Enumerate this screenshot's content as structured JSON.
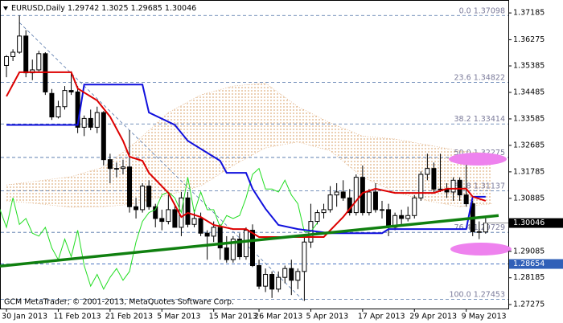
{
  "chart_data": {
    "type": "candlestick",
    "symbol": "EURUSD,Daily",
    "footer": "GCM MetaTrader; © 2001-2013, MetaQuotes Software Corp.",
    "ylim": [
      1.2714,
      1.3757
    ],
    "yticks": [
      1.37185,
      1.36275,
      1.35385,
      1.34485,
      1.33585,
      1.32685,
      1.31785,
      1.30885,
      1.29085,
      1.28185,
      1.27275
    ],
    "xlim": [
      -1,
      77.5
    ],
    "xticks": [
      {
        "value": 0,
        "label": "30 Jan 2013"
      },
      {
        "value": 8,
        "label": "11 Feb 2013"
      },
      {
        "value": 16,
        "label": "21 Feb 2013"
      },
      {
        "value": 24,
        "label": "5 Mar 2013"
      },
      {
        "value": 32,
        "label": "15 Mar 2013"
      },
      {
        "value": 39,
        "label": "26 Mar 2013"
      },
      {
        "value": 47,
        "label": "5 Apr 2013"
      },
      {
        "value": 55,
        "label": "17 Apr 2013"
      },
      {
        "value": 63,
        "label": "29 Apr 2013"
      },
      {
        "value": 71,
        "label": "9 May 2013"
      }
    ],
    "up_color": "#ffffff",
    "down_color": "#000000",
    "open": [
      1.354,
      1.357,
      1.3585,
      1.364,
      1.3515,
      1.3525,
      1.358,
      1.3445,
      1.3365,
      1.34,
      1.3455,
      1.345,
      1.333,
      1.336,
      1.333,
      1.338,
      1.322,
      1.319,
      1.319,
      1.3195,
      1.306,
      1.305,
      1.313,
      1.306,
      1.302,
      1.301,
      1.305,
      1.299,
      1.309,
      1.3,
      1.302,
      1.297,
      1.296,
      1.299,
      1.292,
      1.288,
      1.295,
      1.289,
      1.298,
      1.286,
      1.279,
      1.283,
      1.278,
      1.282,
      1.285,
      1.281,
      1.284,
      1.294,
      1.301,
      1.304,
      1.305,
      1.31,
      1.311,
      1.309,
      1.304,
      1.316,
      1.304,
      1.311,
      1.305,
      1.305,
      1.299,
      1.303,
      1.302,
      1.303,
      1.309,
      1.317,
      1.319,
      1.312,
      1.312,
      1.311,
      1.315,
      1.31,
      1.307,
      1.2975,
      1.29742
    ],
    "high": [
      1.3575,
      1.3595,
      1.371,
      1.366,
      1.356,
      1.359,
      1.3585,
      1.346,
      1.342,
      1.347,
      1.352,
      1.347,
      1.337,
      1.339,
      1.34,
      1.3385,
      1.324,
      1.321,
      1.322,
      1.332,
      1.309,
      1.314,
      1.315,
      1.307,
      1.305,
      1.31,
      1.307,
      1.311,
      1.311,
      1.305,
      1.304,
      1.298,
      1.301,
      1.3,
      1.296,
      1.296,
      1.297,
      1.299,
      1.3,
      1.288,
      1.285,
      1.284,
      1.284,
      1.286,
      1.288,
      1.285,
      1.296,
      1.307,
      1.305,
      1.307,
      1.313,
      1.314,
      1.315,
      1.312,
      1.317,
      1.32,
      1.312,
      1.314,
      1.308,
      1.307,
      1.304,
      1.305,
      1.306,
      1.31,
      1.318,
      1.324,
      1.321,
      1.324,
      1.314,
      1.316,
      1.316,
      1.324,
      1.308,
      1.301,
      1.3025
    ],
    "low": [
      1.35,
      1.3555,
      1.358,
      1.35,
      1.349,
      1.352,
      1.344,
      1.3355,
      1.336,
      1.339,
      1.344,
      1.331,
      1.33,
      1.332,
      1.331,
      1.32,
      1.314,
      1.316,
      1.317,
      1.304,
      1.302,
      1.304,
      1.305,
      1.299,
      1.298,
      1.3,
      1.299,
      1.296,
      1.299,
      1.299,
      1.296,
      1.288,
      1.294,
      1.288,
      1.287,
      1.287,
      1.288,
      1.288,
      1.2855,
      1.278,
      1.277,
      1.275,
      1.277,
      1.28,
      1.276,
      1.278,
      1.274,
      1.292,
      1.3,
      1.302,
      1.304,
      1.306,
      1.308,
      1.303,
      1.303,
      1.303,
      1.303,
      1.304,
      1.302,
      1.296,
      1.298,
      1.3,
      1.301,
      1.302,
      1.308,
      1.315,
      1.311,
      1.311,
      1.309,
      1.308,
      1.308,
      1.306,
      1.296,
      1.295,
      1.29685
    ],
    "close": [
      1.357,
      1.3585,
      1.364,
      1.3515,
      1.3525,
      1.358,
      1.345,
      1.3365,
      1.34,
      1.3455,
      1.345,
      1.333,
      1.336,
      1.333,
      1.338,
      1.322,
      1.319,
      1.319,
      1.3195,
      1.306,
      1.305,
      1.313,
      1.306,
      1.302,
      1.301,
      1.305,
      1.299,
      1.309,
      1.3,
      1.302,
      1.297,
      1.296,
      1.299,
      1.292,
      1.288,
      1.295,
      1.289,
      1.298,
      1.286,
      1.279,
      1.283,
      1.278,
      1.282,
      1.285,
      1.281,
      1.284,
      1.294,
      1.301,
      1.304,
      1.305,
      1.31,
      1.311,
      1.309,
      1.304,
      1.316,
      1.304,
      1.311,
      1.305,
      1.305,
      1.299,
      1.303,
      1.302,
      1.303,
      1.309,
      1.317,
      1.319,
      1.312,
      1.312,
      1.311,
      1.315,
      1.31,
      1.307,
      1.2975,
      1.2975,
      1.30046
    ],
    "cloud": {
      "color": "#d9a06a",
      "x": [
        0,
        5,
        10,
        15,
        20,
        25,
        30,
        35,
        40,
        45,
        50,
        55,
        60,
        65,
        70,
        75
      ],
      "span_a": [
        1.3134,
        1.3148,
        1.3162,
        1.3195,
        1.328,
        1.338,
        1.344,
        1.347,
        1.348,
        1.34,
        1.3345,
        1.33,
        1.329,
        1.327,
        1.325,
        1.324
      ],
      "span_b": [
        1.308,
        1.307,
        1.3058,
        1.306,
        1.307,
        1.31,
        1.313,
        1.32,
        1.326,
        1.328,
        1.325,
        1.316,
        1.311,
        1.308,
        1.306,
        1.307
      ]
    },
    "chikou": {
      "color": "#22dd22",
      "shift": -26
    },
    "series": [
      {
        "color": "#1010dd",
        "x": [
          0,
          11,
          12,
          21,
          22,
          26,
          28,
          33,
          34,
          37,
          38,
          40,
          42,
          45,
          50,
          58,
          59,
          71,
          72,
          74
        ],
        "values": [
          1.3338,
          1.3338,
          1.3475,
          1.3475,
          1.338,
          1.3338,
          1.3284,
          1.3216,
          1.3175,
          1.3175,
          1.3121,
          1.3053,
          1.2998,
          1.2984,
          1.297,
          1.297,
          1.2984,
          1.2984,
          1.3094,
          1.3094
        ]
      },
      {
        "color": "#dd0000",
        "x": [
          0,
          2,
          10,
          11,
          12,
          14,
          16,
          18,
          19,
          21,
          22,
          25,
          27,
          28,
          30,
          32,
          35,
          37,
          39,
          46,
          49,
          52,
          55,
          57,
          60,
          66,
          68,
          71,
          72,
          74
        ],
        "values": [
          1.3435,
          1.3517,
          1.3517,
          1.3462,
          1.3448,
          1.3421,
          1.3366,
          1.3284,
          1.323,
          1.3216,
          1.3175,
          1.3107,
          1.3025,
          1.3039,
          1.3025,
          1.2998,
          1.2984,
          1.2984,
          1.2957,
          1.2957,
          1.2957,
          1.3025,
          1.3107,
          1.3121,
          1.3107,
          1.3107,
          1.3121,
          1.3121,
          1.3094,
          1.308
        ]
      }
    ],
    "trendlines": [
      {
        "color": "#108010",
        "width": 3.5,
        "dashed": false,
        "x": [
          -1,
          76
        ],
        "values": [
          1.2858,
          1.303
        ]
      },
      {
        "color": "#5577aa",
        "width": 0.8,
        "dashed": true,
        "x": [
          2,
          46
        ],
        "values": [
          1.36857,
          1.27384
        ]
      }
    ],
    "fibo_color": "#4a6fa5",
    "fibo": [
      {
        "level": "0.0",
        "price": 1.37098
      },
      {
        "level": "23.6",
        "price": 1.34822
      },
      {
        "level": "38.2",
        "price": 1.33414
      },
      {
        "level": "50.0",
        "price": 1.32275
      },
      {
        "level": "61.8",
        "price": 1.31137
      },
      {
        "level": "76.4",
        "price": 1.29729
      },
      {
        "level": "100.0",
        "price": 1.27453
      }
    ],
    "hline": {
      "price": 1.28654,
      "color": "#3060b8"
    },
    "current_color": "#000000"
  }
}
